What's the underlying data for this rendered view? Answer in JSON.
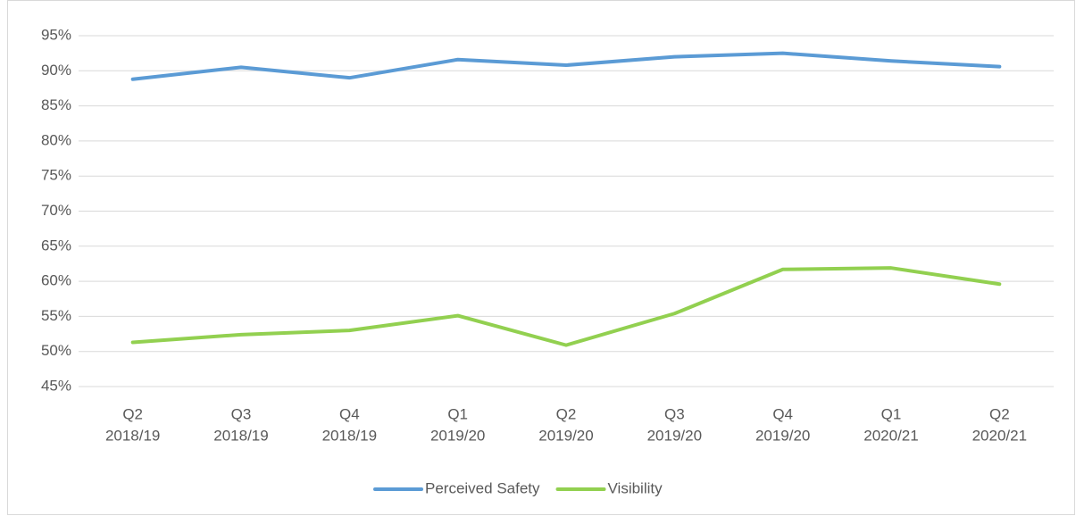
{
  "chart_data": {
    "type": "line",
    "categories": [
      [
        "Q2",
        "2018/19"
      ],
      [
        "Q3",
        "2018/19"
      ],
      [
        "Q4",
        "2018/19"
      ],
      [
        "Q1",
        "2019/20"
      ],
      [
        "Q2",
        "2019/20"
      ],
      [
        "Q3",
        "2019/20"
      ],
      [
        "Q4",
        "2019/20"
      ],
      [
        "Q1",
        "2020/21"
      ],
      [
        "Q2",
        "2020/21"
      ]
    ],
    "series": [
      {
        "name": "Perceived Safety",
        "color": "#5b9bd5",
        "values": [
          88.8,
          90.5,
          89.0,
          91.6,
          90.8,
          92.0,
          92.5,
          91.4,
          90.6
        ]
      },
      {
        "name": "Visibility",
        "color": "#92d050",
        "values": [
          51.3,
          52.4,
          53.0,
          55.1,
          50.9,
          55.4,
          61.7,
          61.9,
          59.6
        ]
      }
    ],
    "ylim": [
      45,
      95
    ],
    "yticks": [
      {
        "value": 45,
        "label": "45%"
      },
      {
        "value": 50,
        "label": "50%"
      },
      {
        "value": 55,
        "label": "55%"
      },
      {
        "value": 60,
        "label": "60%"
      },
      {
        "value": 65,
        "label": "65%"
      },
      {
        "value": 70,
        "label": "70%"
      },
      {
        "value": 75,
        "label": "75%"
      },
      {
        "value": 80,
        "label": "80%"
      },
      {
        "value": 85,
        "label": "85%"
      },
      {
        "value": 90,
        "label": "90%"
      },
      {
        "value": 95,
        "label": "95%"
      }
    ],
    "grid": true,
    "legend": "bottom"
  }
}
